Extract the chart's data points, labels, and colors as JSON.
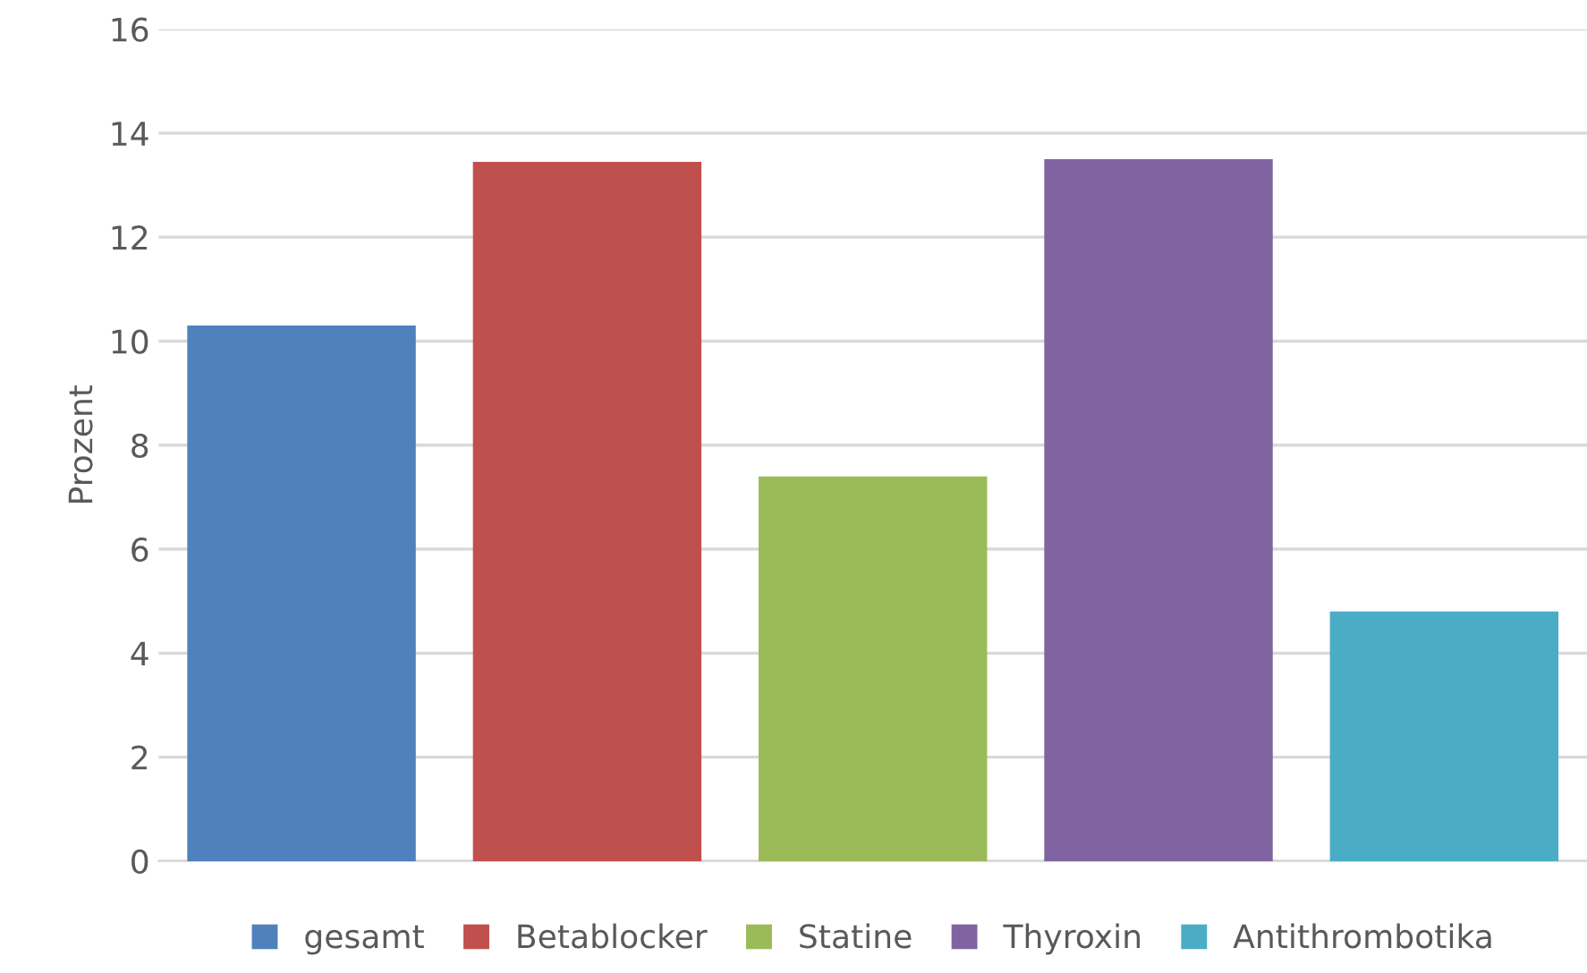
{
  "chart_data": {
    "type": "bar",
    "ylabel": "Prozent",
    "categories": [
      null
    ],
    "series": [
      {
        "name": "gesamt",
        "color": "#4f81bd",
        "values": [
          10.3
        ]
      },
      {
        "name": "Betablocker",
        "color": "#c0504d",
        "values": [
          13.45
        ]
      },
      {
        "name": "Statine",
        "color": "#9bbb59",
        "values": [
          7.4
        ]
      },
      {
        "name": "Thyroxin",
        "color": "#8064a2",
        "values": [
          13.5
        ]
      },
      {
        "name": "Antithrombotika",
        "color": "#4bacc6",
        "values": [
          4.8
        ]
      }
    ],
    "ylim": [
      0,
      16
    ],
    "yticks": [
      0,
      2,
      4,
      6,
      8,
      10,
      12,
      14,
      16
    ],
    "grid": "y",
    "legend": "bottom"
  }
}
